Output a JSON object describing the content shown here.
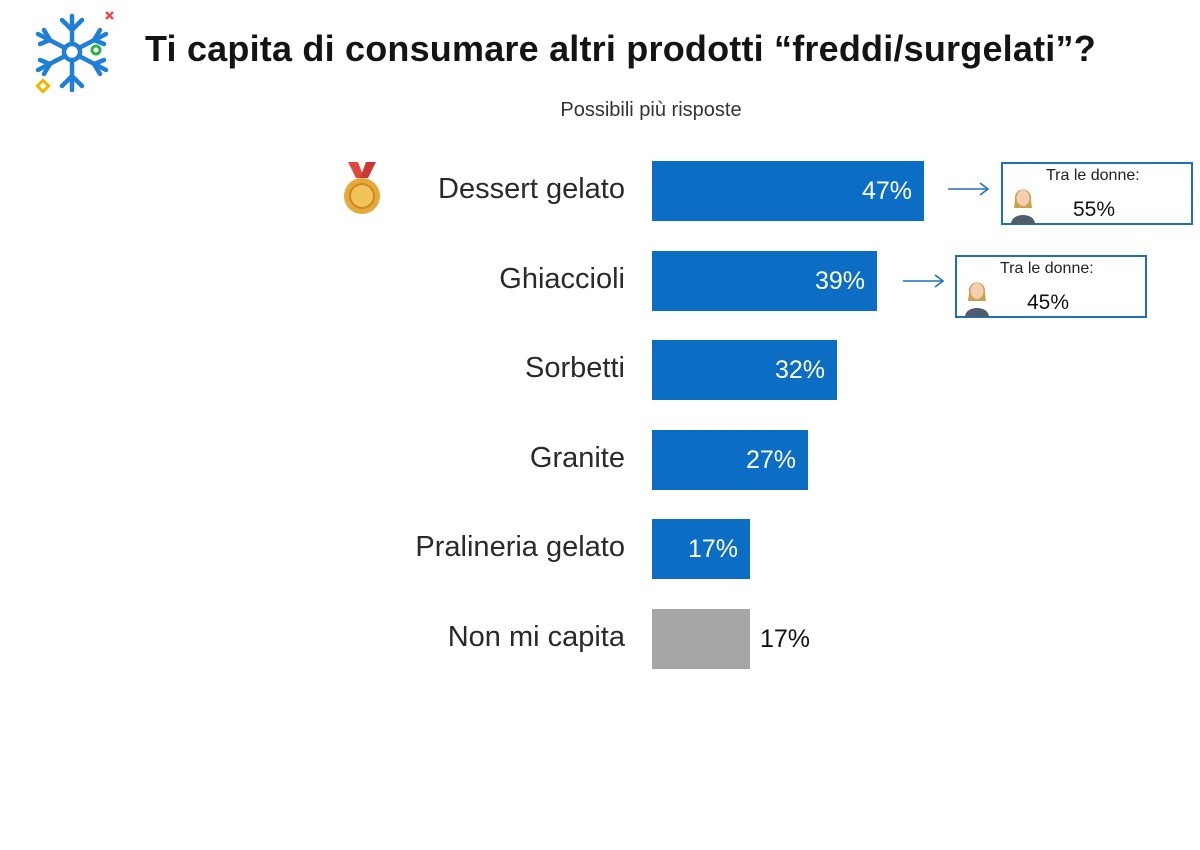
{
  "header": {
    "title": "Ti capita di consumare altri prodotti “freddi/surgelati”?",
    "subtitle": "Possibili più risposte",
    "logo_icon": "snowflake-icon"
  },
  "colors": {
    "bar_primary": "#0b6dc3",
    "bar_secondary": "#a6a6a6",
    "callout_border": "#1f6fc0",
    "medal": "#d9a43a"
  },
  "chart_data": {
    "type": "bar",
    "orientation": "horizontal",
    "categories": [
      "Dessert gelato",
      "Ghiaccioli",
      "Sorbetti",
      "Granite",
      "Pralineria gelato",
      "Non mi capita"
    ],
    "values": [
      47,
      39,
      32,
      27,
      17,
      17
    ],
    "value_labels": [
      "47%",
      "39%",
      "32%",
      "27%",
      "17%",
      "17%"
    ],
    "unit": "%",
    "title": "Ti capita di consumare altri prodotti “freddi/surgelati”?",
    "subtitle": "Possibili più risposte",
    "xlabel": "",
    "ylabel": "",
    "xlim": [
      0,
      100
    ],
    "grid": false,
    "legend": "none",
    "top_item_icon": "medal-icon",
    "annotations": [
      {
        "category": "Dessert gelato",
        "label": "Tra le donne:",
        "value": "55%",
        "icon": "woman-icon"
      },
      {
        "category": "Ghiaccioli",
        "label": "Tra le donne:",
        "value": "45%",
        "icon": "woman-icon"
      }
    ]
  }
}
